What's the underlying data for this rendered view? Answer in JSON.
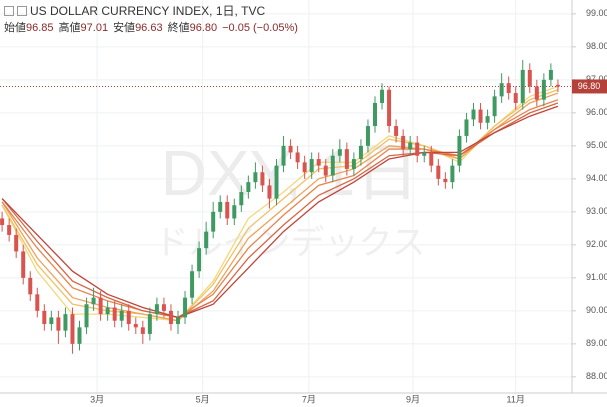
{
  "chart_data": {
    "type": "candlestick",
    "title": "US DOLLAR CURRENCY INDEX, 1日, TVC",
    "ohlc_legend": [
      {
        "name": "始値",
        "value": "96.85"
      },
      {
        "name": "高値",
        "value": "97.01"
      },
      {
        "name": "安値",
        "value": "96.63"
      },
      {
        "name": "終値",
        "value": "96.80"
      }
    ],
    "change": "−0.05 (−0.05%)",
    "watermark": "DXY, 1日",
    "watermark_sub": "ドルインデックス",
    "last_price_label": "96.80",
    "up_color": "#3f9a62",
    "down_color": "#d9534f",
    "x": [
      0,
      1,
      2,
      3,
      4,
      5,
      6,
      7,
      8,
      9,
      10,
      11,
      12,
      13,
      14,
      15,
      16,
      17,
      18,
      19,
      20,
      21,
      22,
      23,
      24,
      25,
      26,
      27,
      28,
      29,
      30,
      31,
      32,
      33,
      34,
      35,
      36,
      37,
      38,
      39,
      40,
      41,
      42,
      43,
      44,
      45,
      46,
      47,
      48,
      49,
      50,
      51,
      52,
      53,
      54,
      55,
      56,
      57,
      58,
      59,
      60,
      61,
      62,
      63,
      64,
      65,
      66,
      67,
      68,
      69,
      70,
      71,
      72,
      73,
      74,
      75,
      76,
      77,
      78,
      79
    ],
    "open": [
      92.8,
      92.6,
      92.3,
      91.8,
      91.0,
      90.5,
      90.0,
      89.6,
      89.8,
      89.4,
      89.9,
      89.0,
      89.5,
      90.2,
      90.4,
      89.9,
      90.1,
      89.7,
      90.0,
      89.6,
      89.5,
      89.3,
      89.9,
      90.2,
      90.0,
      89.6,
      89.8,
      90.4,
      91.2,
      91.9,
      92.4,
      93.0,
      93.3,
      92.8,
      93.2,
      93.6,
      93.9,
      94.2,
      93.8,
      93.4,
      94.4,
      95.0,
      94.8,
      94.5,
      94.2,
      94.6,
      94.4,
      94.1,
      94.7,
      94.9,
      94.3,
      94.6,
      95.0,
      95.6,
      96.3,
      96.7,
      95.6,
      95.3,
      94.9,
      95.1,
      94.7,
      94.8,
      94.4,
      94.0,
      93.9,
      94.4,
      95.3,
      95.8,
      96.1,
      95.7,
      95.9,
      96.5,
      96.9,
      96.6,
      96.3,
      97.3,
      96.8,
      96.4,
      97.0,
      96.85
    ],
    "high": [
      93.0,
      92.8,
      92.5,
      92.0,
      91.2,
      90.7,
      90.2,
      90.0,
      90.0,
      90.1,
      90.1,
      89.7,
      90.4,
      90.7,
      90.6,
      90.3,
      90.3,
      90.2,
      90.2,
      89.8,
      89.7,
      90.1,
      90.4,
      90.4,
      90.2,
      90.0,
      90.6,
      91.4,
      92.1,
      92.7,
      93.3,
      93.5,
      93.5,
      93.4,
      93.8,
      94.1,
      94.5,
      94.4,
      94.0,
      94.6,
      95.3,
      95.2,
      95.0,
      94.7,
      94.8,
      94.8,
      94.6,
      94.9,
      95.2,
      95.1,
      94.8,
      95.2,
      95.8,
      96.5,
      96.9,
      96.8,
      95.8,
      95.5,
      95.3,
      95.3,
      95.0,
      95.0,
      94.6,
      94.2,
      94.6,
      95.5,
      96.0,
      96.3,
      96.3,
      96.1,
      96.7,
      97.2,
      97.1,
      96.8,
      97.6,
      97.5,
      97.0,
      97.2,
      97.5,
      97.01
    ],
    "low": [
      92.4,
      92.1,
      91.6,
      90.8,
      90.3,
      89.8,
      89.4,
      89.4,
      89.0,
      89.2,
      88.7,
      88.8,
      89.3,
      90.0,
      89.7,
      89.7,
      89.5,
      89.5,
      89.4,
      89.3,
      89.0,
      89.1,
      89.7,
      89.8,
      89.4,
      89.3,
      89.6,
      90.2,
      91.0,
      91.7,
      92.2,
      92.8,
      92.6,
      92.6,
      93.0,
      93.4,
      93.7,
      93.6,
      93.1,
      93.2,
      94.2,
      94.6,
      94.3,
      94.0,
      94.0,
      94.2,
      93.9,
      93.9,
      94.5,
      94.1,
      94.1,
      94.4,
      94.8,
      95.4,
      96.1,
      95.4,
      95.1,
      94.7,
      94.7,
      94.5,
      94.5,
      94.2,
      93.8,
      93.7,
      93.7,
      94.2,
      95.1,
      95.6,
      95.5,
      95.5,
      95.7,
      96.3,
      96.4,
      96.1,
      96.1,
      96.6,
      96.2,
      96.2,
      96.8,
      96.63
    ],
    "close": [
      92.6,
      92.3,
      91.8,
      91.0,
      90.5,
      90.0,
      89.6,
      89.8,
      89.4,
      89.9,
      89.0,
      89.5,
      90.2,
      90.4,
      89.9,
      90.1,
      89.7,
      90.0,
      89.6,
      89.5,
      89.3,
      89.9,
      90.2,
      90.0,
      89.6,
      89.8,
      90.4,
      91.2,
      91.9,
      92.4,
      93.0,
      93.3,
      92.8,
      93.2,
      93.6,
      93.9,
      94.2,
      93.8,
      93.4,
      94.4,
      95.0,
      94.8,
      94.5,
      94.2,
      94.6,
      94.4,
      94.1,
      94.7,
      94.9,
      94.3,
      94.6,
      95.0,
      95.6,
      96.3,
      96.7,
      95.6,
      95.3,
      94.9,
      95.1,
      94.7,
      94.8,
      94.4,
      94.0,
      93.9,
      94.4,
      95.3,
      95.8,
      96.1,
      95.7,
      95.9,
      96.5,
      96.9,
      96.6,
      96.3,
      97.3,
      96.8,
      96.4,
      97.0,
      97.3,
      96.8
    ],
    "overlays": {
      "x": [
        0,
        5,
        10,
        15,
        20,
        25,
        30,
        35,
        40,
        45,
        50,
        55,
        60,
        65,
        70,
        75,
        79
      ],
      "series": [
        {
          "color": "#f4d87a",
          "values": [
            93.2,
            91.2,
            89.9,
            89.9,
            89.8,
            89.7,
            90.9,
            92.8,
            93.6,
            94.5,
            94.5,
            95.3,
            95.0,
            94.5,
            95.6,
            96.5,
            96.8
          ]
        },
        {
          "color": "#f2c066",
          "values": [
            93.2,
            91.4,
            90.2,
            90.0,
            89.9,
            89.7,
            90.8,
            92.5,
            93.4,
            94.3,
            94.4,
            95.2,
            95.0,
            94.6,
            95.6,
            96.4,
            96.7
          ]
        },
        {
          "color": "#eea35a",
          "values": [
            93.3,
            91.6,
            90.4,
            90.1,
            89.9,
            89.7,
            90.6,
            92.2,
            93.1,
            94.0,
            94.3,
            95.0,
            94.9,
            94.6,
            95.5,
            96.3,
            96.6
          ]
        },
        {
          "color": "#e5854e",
          "values": [
            93.3,
            91.9,
            90.7,
            90.3,
            90.0,
            89.8,
            90.5,
            91.9,
            92.9,
            93.8,
            94.1,
            94.9,
            94.9,
            94.7,
            95.5,
            96.1,
            96.4
          ]
        },
        {
          "color": "#d86645",
          "values": [
            93.4,
            92.1,
            90.9,
            90.4,
            90.0,
            89.8,
            90.3,
            91.6,
            92.6,
            93.5,
            94.0,
            94.7,
            94.8,
            94.7,
            95.4,
            96.0,
            96.3
          ]
        },
        {
          "color": "#c0453a",
          "values": [
            93.4,
            92.3,
            91.2,
            90.5,
            90.1,
            89.8,
            90.2,
            91.3,
            92.4,
            93.3,
            93.9,
            94.6,
            94.8,
            94.8,
            95.4,
            95.9,
            96.2
          ]
        }
      ]
    },
    "xlim": [
      -0.3,
      81
    ],
    "xticks": [
      {
        "value": 13.5,
        "label": "3月"
      },
      {
        "value": 28.5,
        "label": "5月"
      },
      {
        "value": 43.6,
        "label": "7月"
      },
      {
        "value": 58.4,
        "label": "9月"
      },
      {
        "value": 73.0,
        "label": "11月"
      }
    ],
    "ylim": [
      87.51,
      99.42
    ],
    "yticks": [
      {
        "value": 88,
        "label": "88.00"
      },
      {
        "value": 89,
        "label": "89.00"
      },
      {
        "value": 90,
        "label": "90.00"
      },
      {
        "value": 91,
        "label": "91.00"
      },
      {
        "value": 92,
        "label": "92.00"
      },
      {
        "value": 93,
        "label": "93.00"
      },
      {
        "value": 94,
        "label": "94.00"
      },
      {
        "value": 95,
        "label": "95.00"
      },
      {
        "value": 96,
        "label": "96.00"
      },
      {
        "value": 97,
        "label": "97.00"
      },
      {
        "value": 98,
        "label": "98.00"
      },
      {
        "value": 99,
        "label": "99.00"
      }
    ],
    "grid": true
  }
}
